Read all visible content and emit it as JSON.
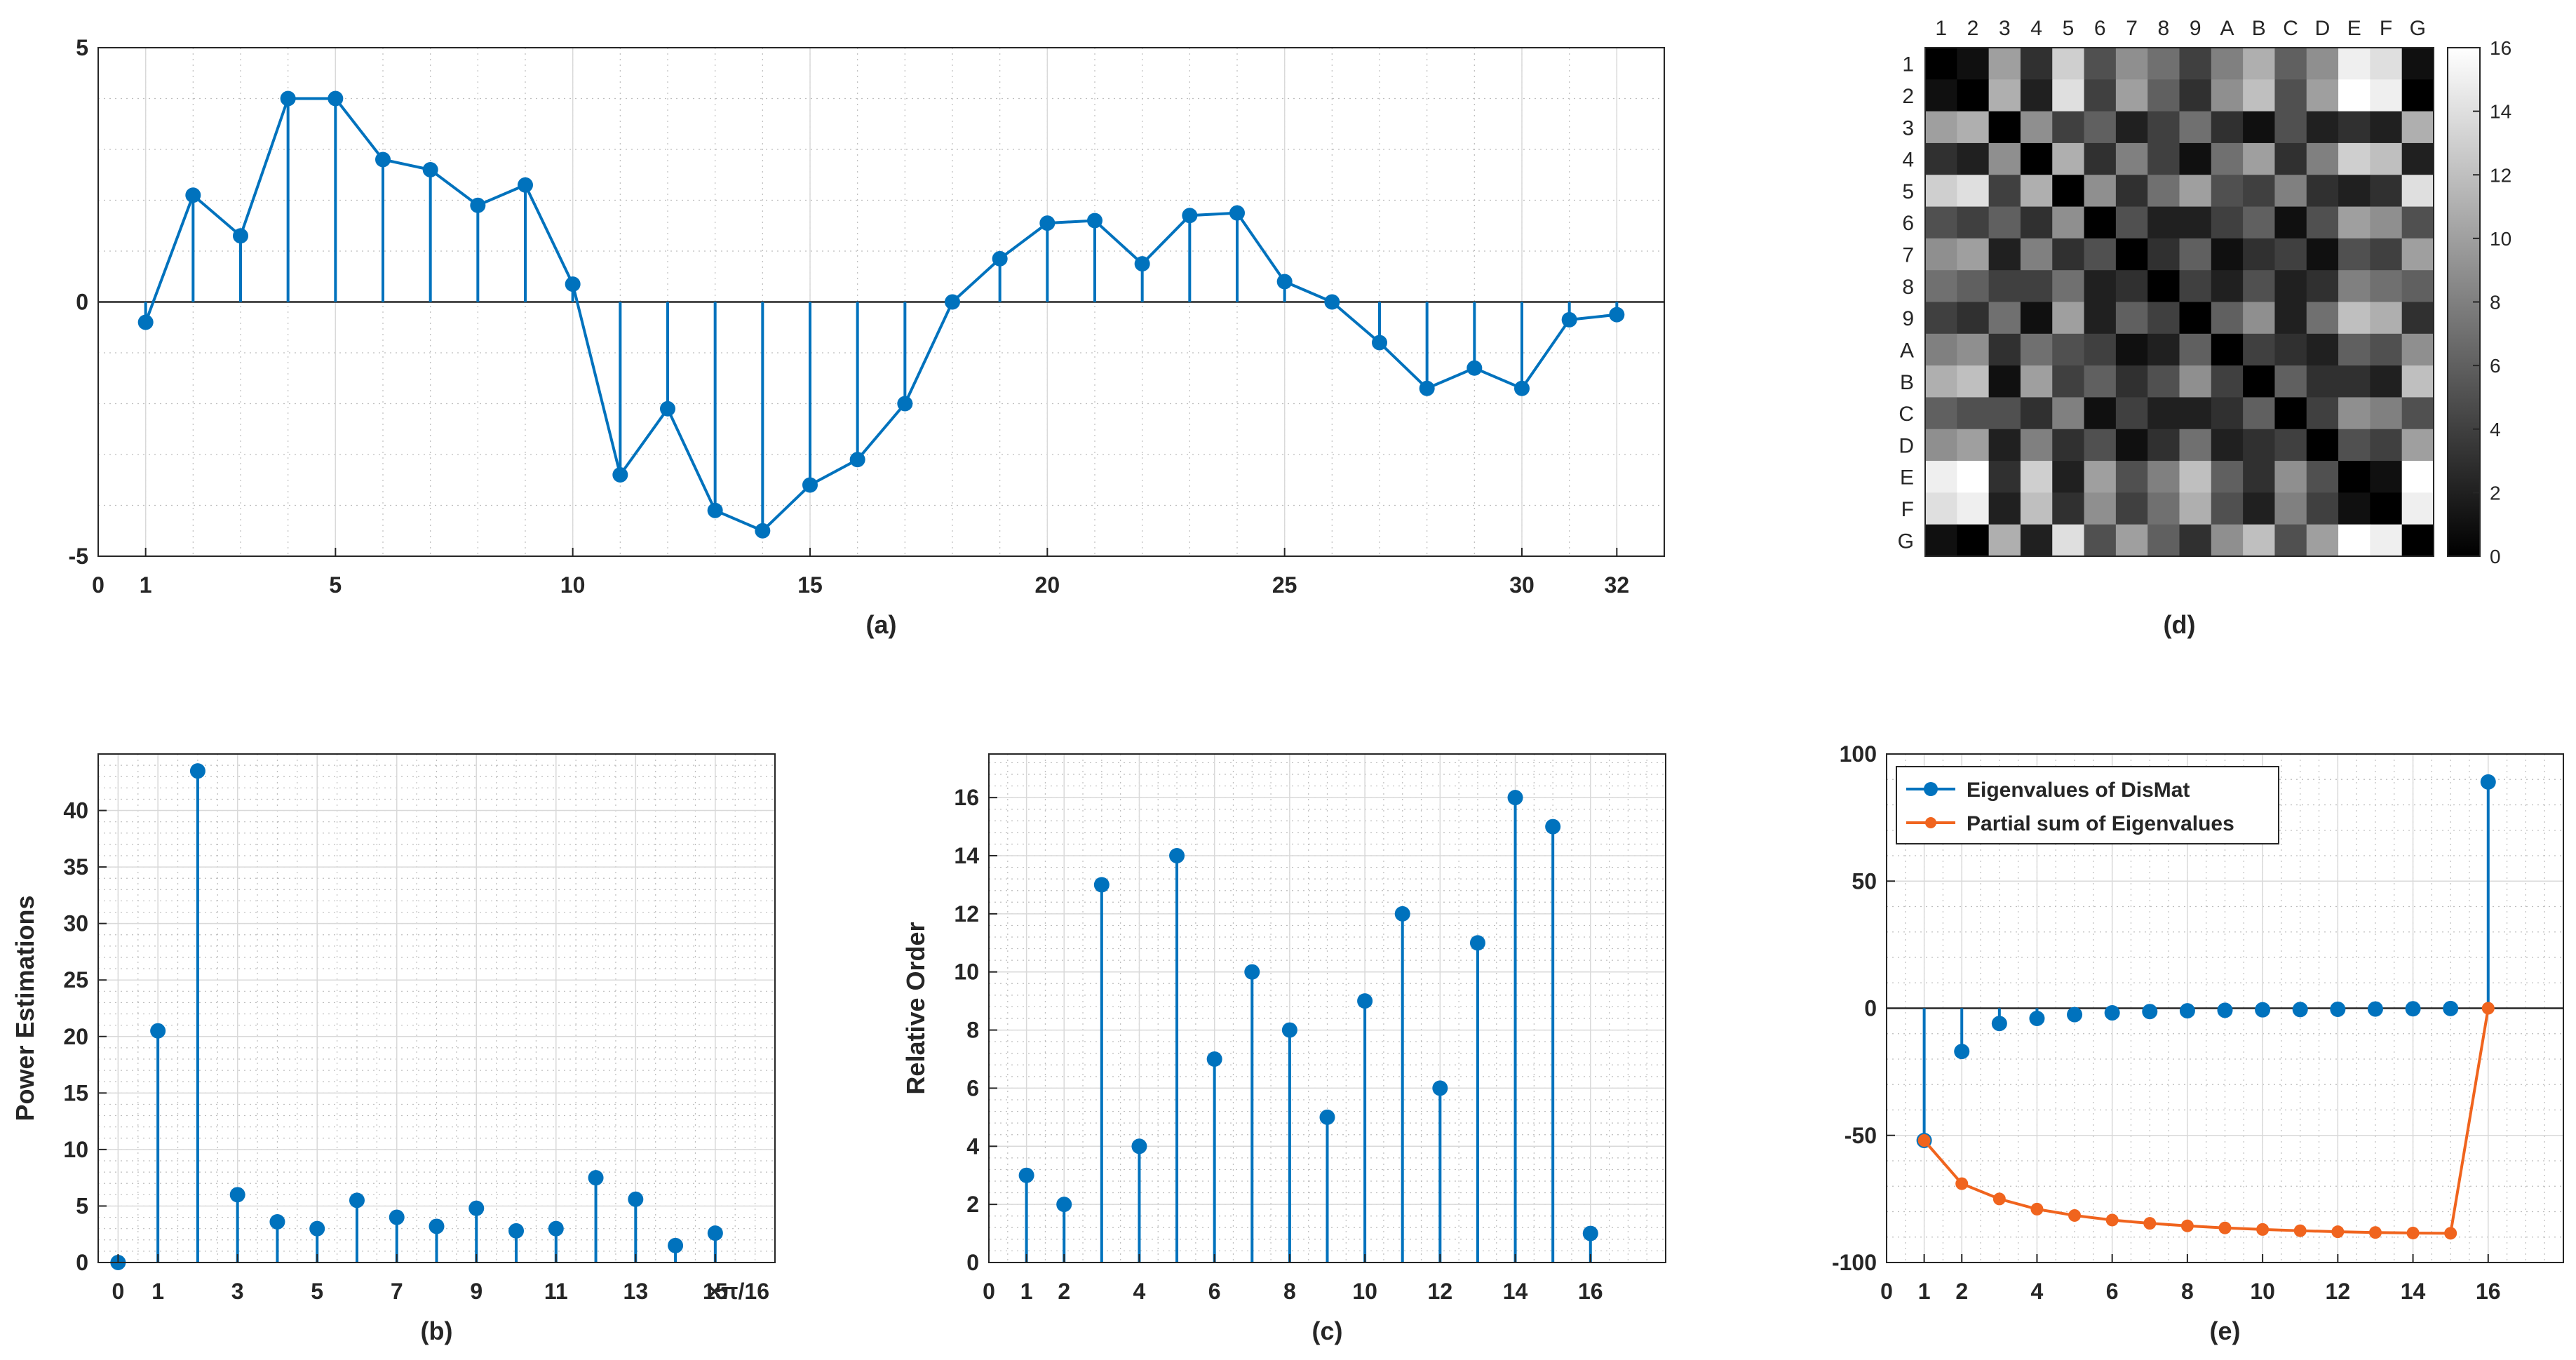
{
  "colors": {
    "stem": "#0072BD",
    "partial_sum": "#F0641E",
    "axis": "#262626",
    "grid_major": "#d9d9d9",
    "grid_minor": "#bdbdbd",
    "background": "#ffffff"
  },
  "chart_data": [
    {
      "id": "a",
      "type": "stem",
      "caption": "(a)",
      "xlim": [
        0,
        33
      ],
      "ylim": [
        -5,
        5
      ],
      "xticks": [
        0,
        1,
        5,
        10,
        15,
        20,
        25,
        30,
        32
      ],
      "xtick_labels": [
        "0",
        "1",
        "5",
        "10",
        "15",
        "20",
        "25",
        "30",
        "32"
      ],
      "yticks": [
        -5,
        0,
        5
      ],
      "ytick_labels": [
        "-5",
        "0",
        "5"
      ],
      "grid": true,
      "baseline": 0,
      "connect_points": true,
      "series": [
        {
          "x": [
            1,
            2,
            3,
            4,
            5,
            6,
            7,
            8,
            9,
            10,
            11,
            12,
            13,
            14,
            15,
            16,
            17,
            18,
            19,
            20,
            21,
            22,
            23,
            24,
            25,
            26,
            27,
            28,
            29,
            30,
            31,
            32
          ],
          "values": [
            -0.4,
            2.1,
            1.3,
            4.0,
            4.0,
            2.8,
            2.6,
            1.9,
            2.3,
            0.35,
            -3.4,
            -2.1,
            -4.1,
            -4.5,
            -3.6,
            -3.1,
            -2.0,
            0.0,
            0.85,
            1.55,
            1.6,
            0.75,
            1.7,
            1.75,
            0.4,
            0.0,
            -0.8,
            -1.7,
            -1.3,
            -1.7,
            -0.35,
            -0.25
          ]
        }
      ]
    },
    {
      "id": "b",
      "type": "stem",
      "caption": "(b)",
      "ylabel": "Power Estimations",
      "xunit": "×π/16",
      "xlim": [
        -0.5,
        16.5
      ],
      "ylim": [
        0,
        45
      ],
      "xticks": [
        0,
        1,
        3,
        5,
        7,
        9,
        11,
        13,
        15
      ],
      "xtick_labels": [
        "0",
        "1",
        "3",
        "5",
        "7",
        "9",
        "11",
        "13",
        "15"
      ],
      "yticks": [
        0,
        5,
        10,
        15,
        20,
        25,
        30,
        35,
        40
      ],
      "ytick_labels": [
        "0",
        "5",
        "10",
        "15",
        "20",
        "25",
        "30",
        "35",
        "40"
      ],
      "grid": true,
      "series": [
        {
          "x": [
            0,
            1,
            2,
            3,
            4,
            5,
            6,
            7,
            8,
            9,
            10,
            11,
            12,
            13,
            14,
            15
          ],
          "values": [
            0.0,
            20.5,
            43.5,
            6.0,
            3.6,
            3.0,
            5.5,
            4.0,
            3.2,
            4.8,
            2.8,
            3.0,
            7.5,
            5.6,
            1.5,
            2.6
          ]
        }
      ]
    },
    {
      "id": "c",
      "type": "stem",
      "caption": "(c)",
      "ylabel": "Relative Order",
      "xlim": [
        0,
        18
      ],
      "ylim": [
        0,
        17.5
      ],
      "xticks": [
        0,
        1,
        2,
        4,
        6,
        8,
        10,
        12,
        14,
        16
      ],
      "xtick_labels": [
        "0",
        "1",
        "2",
        "4",
        "6",
        "8",
        "10",
        "12",
        "14",
        "16"
      ],
      "yticks": [
        0,
        2,
        4,
        6,
        8,
        10,
        12,
        14,
        16
      ],
      "ytick_labels": [
        "0",
        "2",
        "4",
        "6",
        "8",
        "10",
        "12",
        "14",
        "16"
      ],
      "grid": true,
      "series": [
        {
          "x": [
            1,
            2,
            3,
            4,
            5,
            6,
            7,
            8,
            9,
            10,
            11,
            12,
            13,
            14,
            15,
            16
          ],
          "values": [
            3,
            2,
            13,
            4,
            14,
            7,
            10,
            8,
            5,
            9,
            12,
            6,
            11,
            16,
            15,
            1
          ]
        }
      ]
    },
    {
      "id": "d",
      "type": "heatmap",
      "caption": "(d)",
      "row_labels": [
        "1",
        "2",
        "3",
        "4",
        "5",
        "6",
        "7",
        "8",
        "9",
        "A",
        "B",
        "C",
        "D",
        "E",
        "F",
        "G"
      ],
      "col_labels": [
        "1",
        "2",
        "3",
        "4",
        "5",
        "6",
        "7",
        "8",
        "9",
        "A",
        "B",
        "C",
        "D",
        "E",
        "F",
        "G"
      ],
      "colormap": "gray",
      "clim": [
        0,
        16
      ],
      "colorbar_ticks": [
        0,
        2,
        4,
        6,
        8,
        10,
        12,
        14,
        16
      ],
      "colorbar_tick_labels": [
        "0",
        "2",
        "4",
        "6",
        "8",
        "10",
        "12",
        "14",
        "16"
      ],
      "matrix": [
        [
          0,
          1,
          10,
          3,
          13,
          5,
          9,
          7,
          4,
          8,
          11,
          6,
          9,
          15,
          14,
          1
        ],
        [
          1,
          0,
          11,
          2,
          14,
          4,
          10,
          6,
          3,
          9,
          12,
          5,
          10,
          16,
          15,
          0
        ],
        [
          10,
          11,
          0,
          9,
          4,
          6,
          2,
          4,
          7,
          3,
          1,
          5,
          2,
          3,
          2,
          11
        ],
        [
          3,
          2,
          9,
          0,
          11,
          3,
          8,
          4,
          1,
          7,
          10,
          3,
          8,
          13,
          12,
          2
        ],
        [
          13,
          14,
          4,
          11,
          0,
          9,
          3,
          7,
          10,
          5,
          4,
          8,
          3,
          2,
          3,
          14
        ],
        [
          5,
          4,
          6,
          3,
          9,
          0,
          5,
          2,
          2,
          4,
          6,
          1,
          5,
          10,
          9,
          5
        ],
        [
          9,
          10,
          2,
          8,
          3,
          5,
          0,
          3,
          6,
          1,
          3,
          4,
          1,
          5,
          4,
          10
        ],
        [
          7,
          6,
          4,
          4,
          7,
          2,
          3,
          0,
          4,
          2,
          5,
          2,
          3,
          8,
          7,
          6
        ],
        [
          4,
          3,
          7,
          1,
          10,
          2,
          6,
          4,
          0,
          6,
          9,
          2,
          7,
          12,
          11,
          3
        ],
        [
          8,
          9,
          3,
          7,
          5,
          4,
          1,
          2,
          6,
          0,
          4,
          3,
          2,
          6,
          5,
          9
        ],
        [
          11,
          12,
          1,
          10,
          4,
          6,
          3,
          5,
          9,
          4,
          0,
          6,
          3,
          3,
          2,
          12
        ],
        [
          6,
          5,
          5,
          3,
          8,
          1,
          4,
          2,
          2,
          3,
          6,
          0,
          4,
          9,
          8,
          5
        ],
        [
          9,
          10,
          2,
          8,
          3,
          5,
          1,
          3,
          7,
          2,
          3,
          4,
          0,
          5,
          4,
          10
        ],
        [
          15,
          16,
          3,
          13,
          2,
          10,
          5,
          8,
          12,
          6,
          3,
          9,
          5,
          0,
          1,
          16
        ],
        [
          14,
          15,
          2,
          12,
          3,
          9,
          4,
          7,
          11,
          5,
          2,
          8,
          4,
          1,
          0,
          15
        ],
        [
          1,
          0,
          11,
          2,
          14,
          5,
          10,
          6,
          3,
          9,
          12,
          5,
          10,
          16,
          15,
          0
        ]
      ]
    },
    {
      "id": "e",
      "type": "stem",
      "caption": "(e)",
      "xlim": [
        0,
        18
      ],
      "ylim": [
        -100,
        100
      ],
      "xticks": [
        0,
        1,
        2,
        4,
        6,
        8,
        10,
        12,
        14,
        16
      ],
      "xtick_labels": [
        "0",
        "1",
        "2",
        "4",
        "6",
        "8",
        "10",
        "12",
        "14",
        "16"
      ],
      "yticks": [
        -100,
        -50,
        0,
        50,
        100
      ],
      "ytick_labels": [
        "-100",
        "-50",
        "0",
        "50",
        "100"
      ],
      "grid": true,
      "baseline": 0,
      "legend_position": "top-left",
      "series": [
        {
          "name": "Eigenvalues of DisMat",
          "style": "stem",
          "x": [
            1,
            2,
            3,
            4,
            5,
            6,
            7,
            8,
            9,
            10,
            11,
            12,
            13,
            14,
            15,
            16
          ],
          "values": [
            -52,
            -17,
            -6,
            -4,
            -2.5,
            -1.8,
            -1.3,
            -1,
            -0.8,
            -0.6,
            -0.5,
            -0.4,
            -0.3,
            -0.2,
            -0.1,
            89
          ]
        },
        {
          "name": "Partial sum of Eigenvalues",
          "style": "line",
          "x": [
            1,
            2,
            3,
            4,
            5,
            6,
            7,
            8,
            9,
            10,
            11,
            12,
            13,
            14,
            15,
            16
          ],
          "values": [
            -52,
            -69,
            -75,
            -79,
            -81.5,
            -83.3,
            -84.6,
            -85.6,
            -86.4,
            -87,
            -87.5,
            -87.9,
            -88.2,
            -88.4,
            -88.5,
            0
          ]
        }
      ]
    }
  ]
}
